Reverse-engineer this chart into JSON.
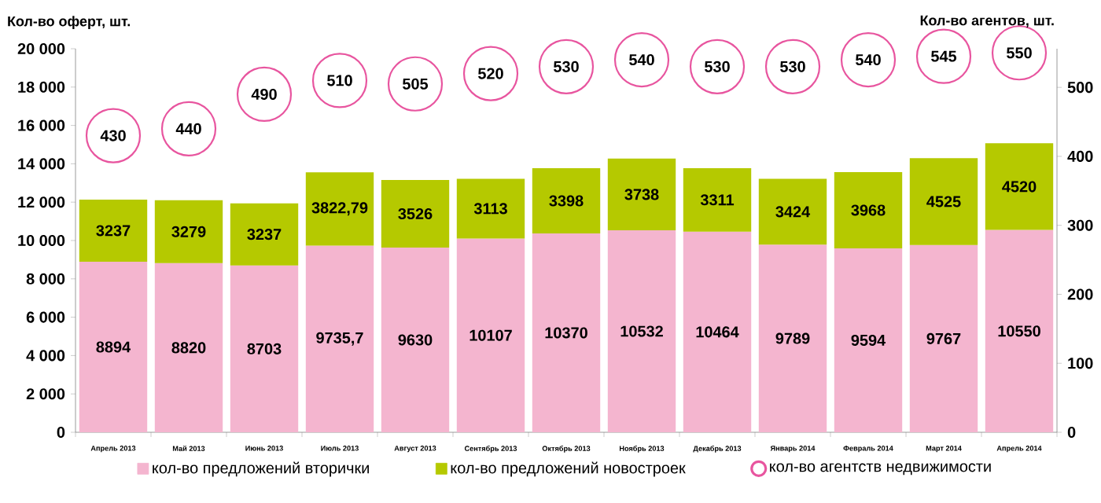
{
  "chart_data": {
    "type": "bar",
    "stacked": true,
    "ylabel": "Кол-во оферт, шт.",
    "y2label": "Кол-во агентов, шт.",
    "categories": [
      "Апрель 2013",
      "Май 2013",
      "Июнь 2013",
      "Июль 2013",
      "Август 2013",
      "Сентябрь 2013",
      "Октябрь 2013",
      "Ноябрь 2013",
      "Декабрь 2013",
      "Январь 2014",
      "Февраль 2014",
      "Март 2014",
      "Апрель 2014"
    ],
    "series": [
      {
        "name": "кол-во предложений вторички",
        "color": "#f4b5cf",
        "values": [
          8894,
          8820,
          8703,
          9735.7,
          9630,
          10107,
          10370,
          10532,
          10464,
          9789,
          9594,
          9767,
          10550
        ],
        "value_labels": [
          "8894",
          "8820",
          "8703",
          "9735,7",
          "9630",
          "10107",
          "10370",
          "10532",
          "10464",
          "9789",
          "9594",
          "9767",
          "10550"
        ]
      },
      {
        "name": "кол-во предложений новостроек",
        "color": "#b5c900",
        "values": [
          3237,
          3279,
          3237,
          3822.79,
          3526,
          3113,
          3398,
          3738,
          3311,
          3424,
          3968,
          4525,
          4520
        ],
        "value_labels": [
          "3237",
          "3279",
          "3237",
          "3822,79",
          "3526",
          "3113",
          "3398",
          "3738",
          "3311",
          "3424",
          "3968",
          "4525",
          "4520"
        ]
      },
      {
        "name": "кол-во агентств недвижимости",
        "type": "scatter",
        "axis": "y2",
        "marker": "circle",
        "color": "#e8559f",
        "values": [
          430,
          440,
          490,
          510,
          505,
          520,
          530,
          540,
          530,
          530,
          540,
          545,
          550
        ],
        "value_labels": [
          "430",
          "440",
          "490",
          "510",
          "505",
          "520",
          "530",
          "540",
          "530",
          "530",
          "540",
          "545",
          "550"
        ]
      }
    ],
    "ylim": [
      0,
      20000
    ],
    "yticks": [
      {
        "value": 0,
        "label": "0"
      },
      {
        "value": 2000,
        "label": "2 000"
      },
      {
        "value": 4000,
        "label": "4 000"
      },
      {
        "value": 6000,
        "label": "6 000"
      },
      {
        "value": 8000,
        "label": "8 000"
      },
      {
        "value": 10000,
        "label": "10 000"
      },
      {
        "value": 12000,
        "label": "12 000"
      },
      {
        "value": 14000,
        "label": "14 000"
      },
      {
        "value": 16000,
        "label": "16 000"
      },
      {
        "value": 18000,
        "label": "18 000"
      },
      {
        "value": 20000,
        "label": "20 000"
      }
    ],
    "y2lim": [
      0,
      556
    ],
    "y2ticks": [
      0,
      100,
      200,
      300,
      400,
      500
    ],
    "legend": "bottom"
  }
}
